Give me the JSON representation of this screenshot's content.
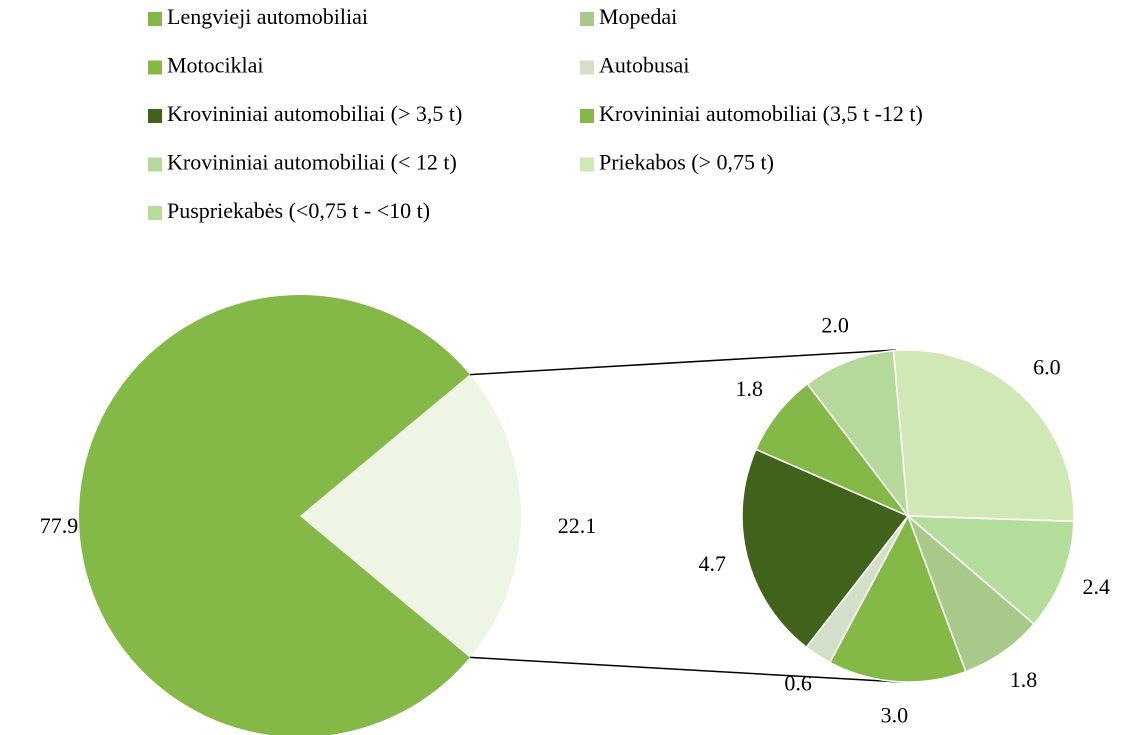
{
  "chart_data": {
    "type": "pie-of-pie",
    "categories": [
      "Lengvieji automobiliai",
      "Mopedai",
      "Motociklai",
      "Autobusai",
      "Krovininiai automobiliai (> 3,5 t)",
      "Krovininiai automobiliai (3,5 t -12 t)",
      "Krovininiai automobiliai (< 12 t)",
      "Priekabos (> 0,75 t)",
      "Puspriekabės (<0,75 t - <10 t)"
    ],
    "values": [
      77.9,
      1.8,
      3.0,
      0.6,
      4.7,
      1.8,
      2.0,
      6.0,
      2.4
    ],
    "value_labels": [
      "77.9",
      "1.8",
      "3.0",
      "0.6",
      "4.7",
      "1.8",
      "2.0",
      "6.0",
      "2.4"
    ],
    "colors": [
      "#84b948",
      "#a9c98b",
      "#84b948",
      "#d3dfc8",
      "#41621a",
      "#84b948",
      "#b5d99a",
      "#d0e8b6",
      "#b5dd9c"
    ],
    "other": 22.1,
    "other_label": "22.1",
    "other_color": "#eef5e4"
  }
}
